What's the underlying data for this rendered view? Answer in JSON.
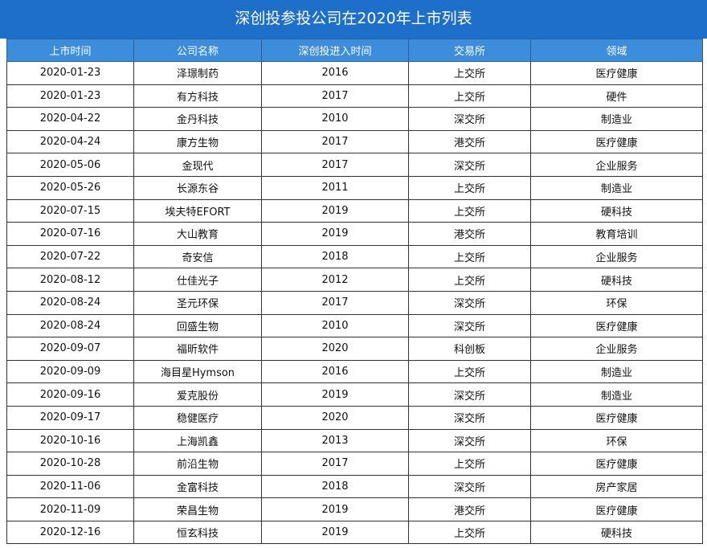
{
  "header": {
    "title": "深创投参投公司在2020年上市列表"
  },
  "table": {
    "columns": [
      "上市时间",
      "公司名称",
      "深创投进入时间",
      "交易所",
      "领域"
    ],
    "rows": [
      [
        "2020-01-23",
        "泽璟制药",
        "2016",
        "上交所",
        "医疗健康"
      ],
      [
        "2020-01-23",
        "有方科技",
        "2017",
        "上交所",
        "硬件"
      ],
      [
        "2020-04-22",
        "金丹科技",
        "2010",
        "深交所",
        "制造业"
      ],
      [
        "2020-04-24",
        "康方生物",
        "2017",
        "港交所",
        "医疗健康"
      ],
      [
        "2020-05-06",
        "金现代",
        "2017",
        "深交所",
        "企业服务"
      ],
      [
        "2020-05-26",
        "长源东谷",
        "2011",
        "上交所",
        "制造业"
      ],
      [
        "2020-07-15",
        "埃夫特EFORT",
        "2019",
        "上交所",
        "硬科技"
      ],
      [
        "2020-07-16",
        "大山教育",
        "2019",
        "港交所",
        "教育培训"
      ],
      [
        "2020-07-22",
        "奇安信",
        "2018",
        "上交所",
        "企业服务"
      ],
      [
        "2020-08-12",
        "仕佳光子",
        "2012",
        "上交所",
        "硬科技"
      ],
      [
        "2020-08-24",
        "圣元环保",
        "2017",
        "深交所",
        "环保"
      ],
      [
        "2020-08-24",
        "回盛生物",
        "2010",
        "深交所",
        "医疗健康"
      ],
      [
        "2020-09-07",
        "福昕软件",
        "2020",
        "科创板",
        "企业服务"
      ],
      [
        "2020-09-09",
        "海目星Hymson",
        "2016",
        "上交所",
        "制造业"
      ],
      [
        "2020-09-16",
        "爱克股份",
        "2019",
        "深交所",
        "制造业"
      ],
      [
        "2020-09-17",
        "稳健医疗",
        "2020",
        "深交所",
        "医疗健康"
      ],
      [
        "2020-10-16",
        "上海凯鑫",
        "2013",
        "深交所",
        "环保"
      ],
      [
        "2020-10-28",
        "前沿生物",
        "2017",
        "上交所",
        "医疗健康"
      ],
      [
        "2020-11-06",
        "金富科技",
        "2018",
        "深交所",
        "房产家居"
      ],
      [
        "2020-11-09",
        "荣昌生物",
        "2019",
        "港交所",
        "医疗健康"
      ],
      [
        "2020-12-16",
        "恒玄科技",
        "2019",
        "上交所",
        "硬科技"
      ]
    ]
  }
}
